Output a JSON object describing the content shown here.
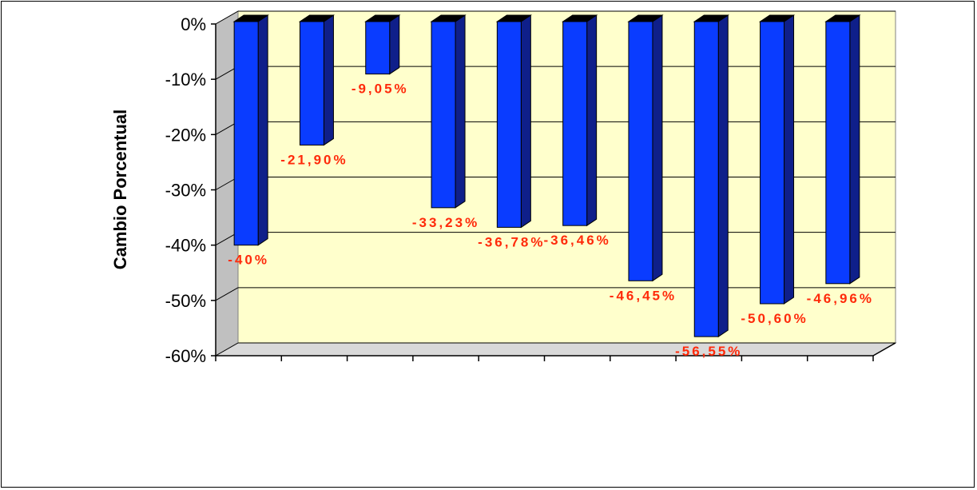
{
  "chart_data": {
    "type": "bar",
    "categories": [
      "",
      "",
      "",
      "",
      "",
      "",
      "",
      "",
      "",
      ""
    ],
    "values": [
      -40,
      -21.9,
      -9.05,
      -33.23,
      -36.78,
      -36.46,
      -46.45,
      -56.55,
      -50.6,
      -46.96
    ],
    "data_labels": [
      "-40%",
      "-21,90%",
      "-9,05%",
      "-33,23%",
      "-36,78%",
      "-36,46%",
      "-46,45%",
      "-56,55%",
      "-50,60%",
      "-46,96%"
    ],
    "ylabel": "Cambio Porcentual",
    "ylim": [
      -60,
      0
    ],
    "yticks": [
      0,
      -10,
      -20,
      -30,
      -40,
      -50,
      -60
    ],
    "ytick_labels": [
      "0%",
      "-10%",
      "-20%",
      "-30%",
      "-40%",
      "-50%",
      "-60%"
    ],
    "grid": true,
    "style": "3d-column",
    "colors": {
      "bar_front": "#0a3cff",
      "bar_side": "#0f1f8a",
      "bar_top": "#000000",
      "plot_back": "#ffffcc",
      "label_text": "#ff2a0a"
    }
  }
}
